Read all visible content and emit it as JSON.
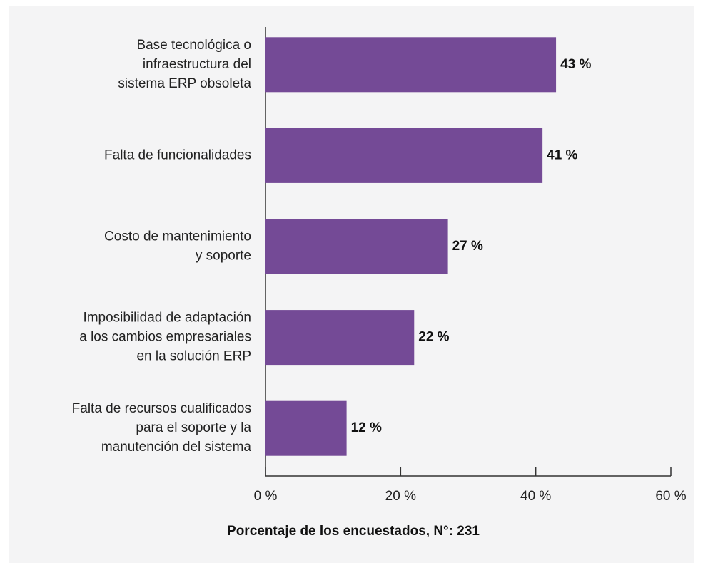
{
  "chart_data": {
    "type": "bar",
    "orientation": "horizontal",
    "categories": [
      [
        "Base tecnológica o",
        "infraestructura del",
        "sistema ERP obsoleta"
      ],
      [
        "Falta de funcionalidades"
      ],
      [
        "Costo de mantenimiento",
        "y soporte"
      ],
      [
        "Imposibilidad de adaptación",
        "a los cambios empresariales",
        "en la solución ERP"
      ],
      [
        "Falta de recursos cualificados",
        "para el soporte y la",
        "manutención del sistema"
      ]
    ],
    "values": [
      43,
      41,
      27,
      22,
      12
    ],
    "value_labels": [
      "43 %",
      "41 %",
      "27 %",
      "22 %",
      "12 %"
    ],
    "color": "#744a96",
    "xlim": [
      0,
      60
    ],
    "xticks": [
      {
        "value": 0,
        "label": "0 %"
      },
      {
        "value": 20,
        "label": "20 %"
      },
      {
        "value": 40,
        "label": "40 %"
      },
      {
        "value": 60,
        "label": "60 %"
      }
    ],
    "xlabel": "Porcentaje de los encuestados, N°: 231"
  }
}
